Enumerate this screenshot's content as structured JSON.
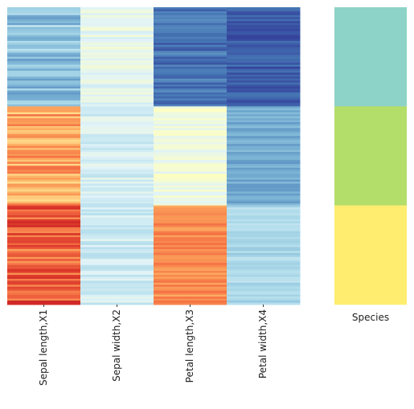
{
  "chart_data": [
    {
      "type": "heatmap",
      "title": "",
      "xlabel": "",
      "ylabel": "",
      "columns": [
        "Sepal length,X1",
        "Sepal width,X2",
        "Petal length,X3",
        "Petal width,X4"
      ],
      "rows": 150,
      "colormap": "RdYlBu_r",
      "value_range": [
        0,
        1
      ],
      "grid": false,
      "groups": [
        {
          "rows": 50,
          "means": [
            0.25,
            0.42,
            0.1,
            0.06
          ]
        },
        {
          "rows": 50,
          "means": [
            0.7,
            0.38,
            0.45,
            0.2
          ]
        },
        {
          "rows": 50,
          "means": [
            0.82,
            0.37,
            0.75,
            0.3
          ]
        }
      ],
      "noise": [
        0.1,
        0.05,
        0.05,
        0.04
      ]
    },
    {
      "type": "heatmap",
      "title": "",
      "columns": [
        "Species"
      ],
      "rows": 150,
      "grid": false,
      "groups": [
        {
          "rows": 50,
          "color": "#8dd3c7"
        },
        {
          "rows": 50,
          "color": "#b3de69"
        },
        {
          "rows": 50,
          "color": "#ffed6f"
        }
      ]
    }
  ]
}
